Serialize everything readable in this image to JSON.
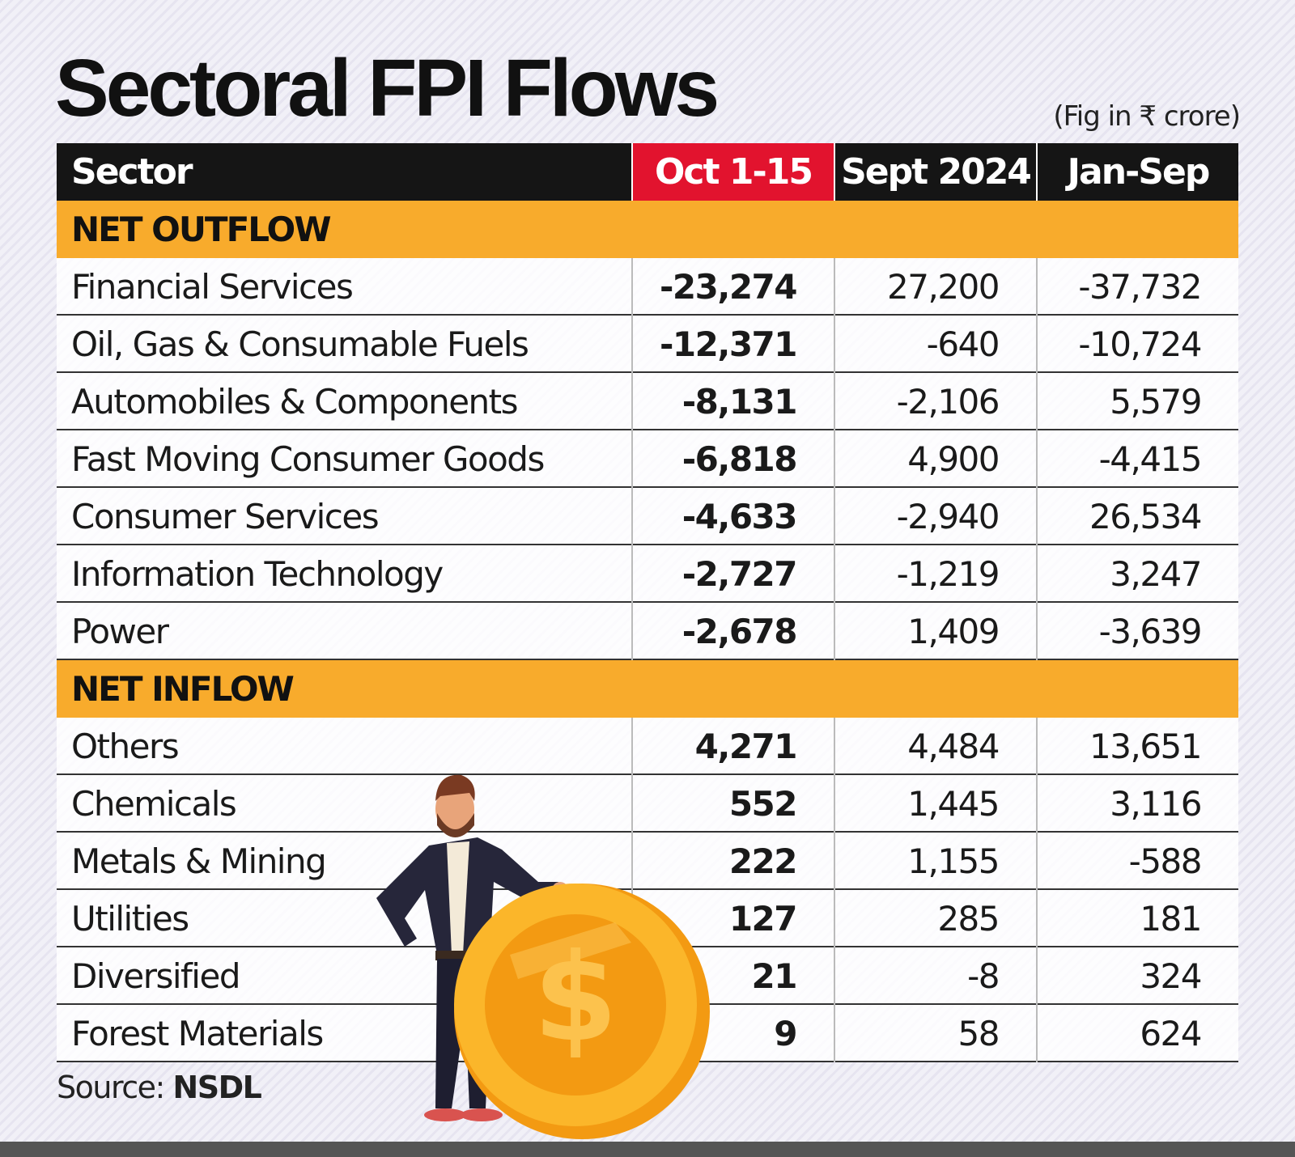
{
  "header": {
    "title": "Sectoral FPI Flows",
    "note": "(Fig in ₹ crore)"
  },
  "table": {
    "columns": [
      "Sector",
      "Oct 1-15",
      "Sept 2024",
      "Jan-Sep"
    ],
    "sections": [
      {
        "label": "NET OUTFLOW",
        "rows": [
          [
            "Financial Services",
            "-23,274",
            "27,200",
            "-37,732"
          ],
          [
            "Oil, Gas & Consumable Fuels",
            "-12,371",
            "-640",
            "-10,724"
          ],
          [
            "Automobiles & Components",
            "-8,131",
            "-2,106",
            "5,579"
          ],
          [
            "Fast Moving Consumer Goods",
            "-6,818",
            "4,900",
            "-4,415"
          ],
          [
            "Consumer Services",
            "-4,633",
            "-2,940",
            "26,534"
          ],
          [
            "Information Technology",
            "-2,727",
            "-1,219",
            "3,247"
          ],
          [
            "Power",
            "-2,678",
            "1,409",
            "-3,639"
          ]
        ]
      },
      {
        "label": "NET INFLOW",
        "rows": [
          [
            "Others",
            "4,271",
            "4,484",
            "13,651"
          ],
          [
            "Chemicals",
            "552",
            "1,445",
            "3,116"
          ],
          [
            "Metals & Mining",
            "222",
            "1,155",
            "-588"
          ],
          [
            "Utilities",
            "127",
            "285",
            "181"
          ],
          [
            "Diversified",
            "21",
            "-8",
            "324"
          ],
          [
            "Forest Materials",
            "9",
            "58",
            "624"
          ]
        ]
      }
    ]
  },
  "footer": {
    "source_label": "Source:",
    "source": "NSDL"
  }
}
